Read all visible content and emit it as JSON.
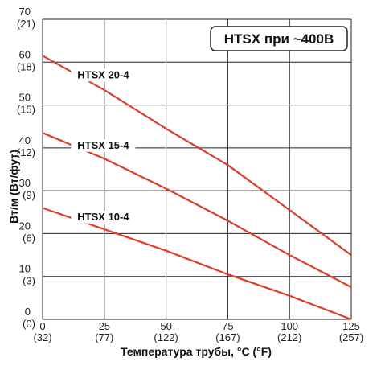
{
  "chart_data": {
    "type": "line",
    "title": "HTSX при ~400В",
    "xlabel": "Температура трубы, °C (°F)",
    "ylabel": "Вт/м (Вт/фут)",
    "xlim": [
      0,
      125
    ],
    "ylim": [
      0,
      70
    ],
    "grid": true,
    "x_ticks": [
      {
        "value": 0,
        "label": "0",
        "sub": "(32)"
      },
      {
        "value": 25,
        "label": "25",
        "sub": "(77)"
      },
      {
        "value": 50,
        "label": "50",
        "sub": "(122)"
      },
      {
        "value": 75,
        "label": "75",
        "sub": "(167)"
      },
      {
        "value": 100,
        "label": "100",
        "sub": "(212)"
      },
      {
        "value": 125,
        "label": "125",
        "sub": "(257)"
      }
    ],
    "y_ticks": [
      {
        "value": 0,
        "label": "0",
        "sub": "(0)"
      },
      {
        "value": 10,
        "label": "10",
        "sub": "(3)"
      },
      {
        "value": 20,
        "label": "20",
        "sub": "(6)"
      },
      {
        "value": 30,
        "label": "30",
        "sub": "(9)"
      },
      {
        "value": 40,
        "label": "40",
        "sub": "(12)"
      },
      {
        "value": 50,
        "label": "50",
        "sub": "(15)"
      },
      {
        "value": 60,
        "label": "60",
        "sub": "(18)"
      },
      {
        "value": 70,
        "label": "70",
        "sub": "(21)"
      }
    ],
    "series": [
      {
        "name": "HTSX 20-4",
        "color": "#e03c2a",
        "x": [
          0,
          25,
          50,
          75,
          100,
          125
        ],
        "y": [
          61.5,
          53.5,
          44.5,
          36,
          25.5,
          15
        ]
      },
      {
        "name": "HTSX 15-4",
        "color": "#e03c2a",
        "x": [
          0,
          25,
          50,
          75,
          100,
          125
        ],
        "y": [
          43.5,
          37.5,
          30.5,
          23,
          15,
          7.5
        ]
      },
      {
        "name": "HTSX 10-4",
        "color": "#e03c2a",
        "x": [
          0,
          25,
          50,
          75,
          100,
          125
        ],
        "y": [
          26,
          21,
          16,
          10.5,
          5.5,
          0
        ]
      }
    ]
  }
}
